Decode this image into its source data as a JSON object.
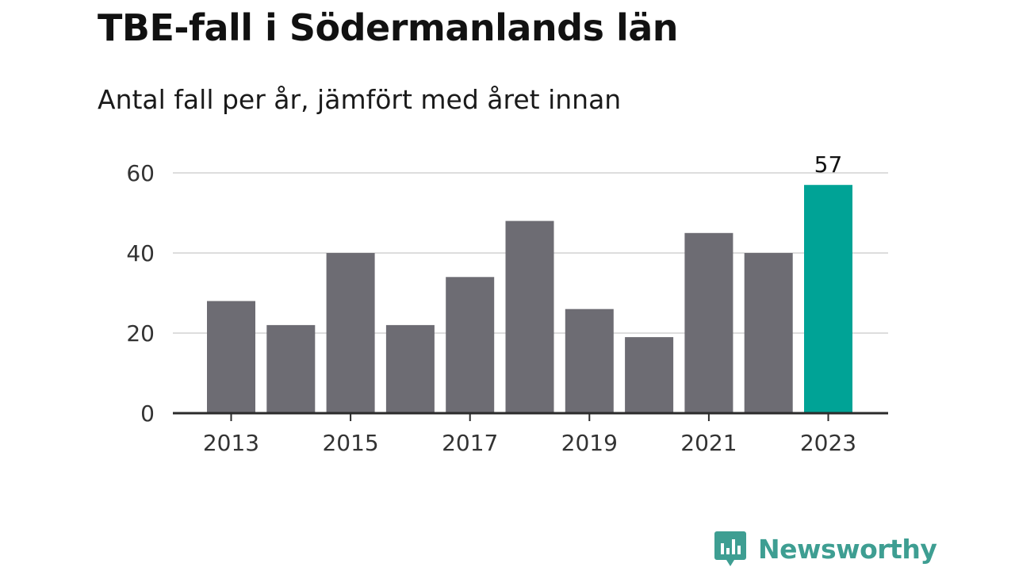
{
  "title": "TBE-fall i Södermanlands län",
  "subtitle": "Antal fall per år, jämfört med året innan",
  "brand": {
    "name": "Newsworthy",
    "icon": "bar-chart-speech-bubble-icon",
    "color": "#3e9e92"
  },
  "chart_data": {
    "type": "bar",
    "title": "TBE-fall i Södermanlands län",
    "subtitle": "Antal fall per år, jämfört med året innan",
    "xlabel": "",
    "ylabel": "",
    "categories": [
      "2013",
      "2014",
      "2015",
      "2016",
      "2017",
      "2018",
      "2019",
      "2020",
      "2021",
      "2022",
      "2023"
    ],
    "values": [
      28,
      22,
      40,
      22,
      34,
      48,
      26,
      19,
      45,
      40,
      57
    ],
    "ylim": [
      0,
      60
    ],
    "yticks": [
      0,
      20,
      40,
      60
    ],
    "xtick_labels": [
      "2013",
      "2015",
      "2017",
      "2019",
      "2021",
      "2023"
    ],
    "grid": "horizontal",
    "colors": {
      "default": "#6d6c73",
      "highlight": "#00a396"
    },
    "highlight": "2023",
    "data_labels": [
      {
        "category": "2023",
        "text": "57"
      }
    ]
  }
}
